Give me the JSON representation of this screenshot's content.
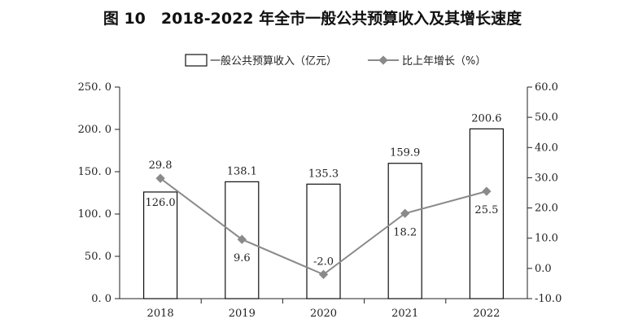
{
  "title": "图 10　2018-2022 年全市一般公共预算收入及其增长速度",
  "chart_data": {
    "type": "bar",
    "categories": [
      "2018",
      "2019",
      "2020",
      "2021",
      "2022"
    ],
    "series": [
      {
        "name": "一般公共预算收入（亿元）",
        "type": "bar",
        "axis": "left",
        "values": [
          126.0,
          138.1,
          135.3,
          159.9,
          200.6
        ],
        "labels": [
          "126.0",
          "138.1",
          "135.3",
          "159.9",
          "200.6"
        ]
      },
      {
        "name": "比上年增长（%）",
        "type": "line",
        "axis": "right",
        "values": [
          29.8,
          9.6,
          -2.0,
          18.2,
          25.5
        ],
        "labels": [
          "29.8",
          "9.6",
          "-2.0",
          "18.2",
          "25.5"
        ]
      }
    ],
    "left_axis": {
      "ylim": [
        0,
        250
      ],
      "ticks": [
        0,
        50,
        100,
        150,
        200,
        250
      ],
      "tick_labels": [
        "0. 0",
        "50. 0",
        "100. 0",
        "150. 0",
        "200. 0",
        "250. 0"
      ]
    },
    "right_axis": {
      "ylim": [
        -10,
        60
      ],
      "ticks": [
        -10,
        0,
        10,
        20,
        30,
        40,
        50,
        60
      ],
      "tick_labels": [
        "-10.0",
        "0.0",
        "10.0",
        "20.0",
        "30.0",
        "40.0",
        "50.0",
        "60.0"
      ]
    },
    "legend_position": "top",
    "grid": false,
    "colors": {
      "bar_fill": "#ffffff",
      "bar_stroke": "#111111",
      "line": "#8a8a8a"
    }
  }
}
